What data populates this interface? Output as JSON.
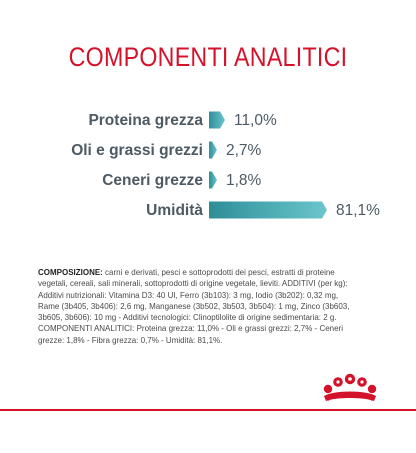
{
  "title": "COMPONENTI ANALITICI",
  "colors": {
    "title": "#d4132b",
    "label": "#4d5a63",
    "value": "#4d5a63",
    "bar_start": "#2e8e98",
    "bar_end": "#6ac6cc",
    "accent_line": "#d4132b"
  },
  "chart_data": {
    "type": "bar",
    "orientation": "horizontal",
    "categories": [
      "Proteina grezza",
      "Oli e grassi grezzi",
      "Ceneri grezze",
      "Umidità"
    ],
    "values": [
      11.0,
      2.7,
      1.8,
      81.1
    ],
    "value_labels": [
      "11,0%",
      "2,7%",
      "1,8%",
      "81,1%"
    ],
    "unit": "%",
    "xlim": [
      0,
      81.1
    ],
    "grid": false,
    "legend": "none"
  },
  "composition": {
    "heading": "COMPOSIZIONE:",
    "text": " carni e derivati, pesci e sottoprodotti dei pesci, estratti di proteine vegetali, cereali, sali minerali, sottoprodotti di origine vegetale, lieviti. ADDITIVI (per kg): Additivi nutrizionali: Vitamina D3: 40 UI, Ferro (3b103): 3 mg, Iodio (3b202): 0,32 mg, Rame (3b405, 3b406): 2,6 mg, Manganese (3b502, 3b503, 3b504): 1 mg, Zinco (3b603, 3b605, 3b606): 10 mg - Additivi tecnologici: Clinoptilolite di origine sedimentaria: 2 g. COMPONENTI ANALITICI: Proteina grezza: 11,0% - Oli e grassi grezzi: 2,7% - Ceneri grezze: 1,8% - Fibra grezza: 0,7% - Umidità: 81,1%."
  },
  "logo": {
    "name": "royal-canin-crown-logo"
  }
}
